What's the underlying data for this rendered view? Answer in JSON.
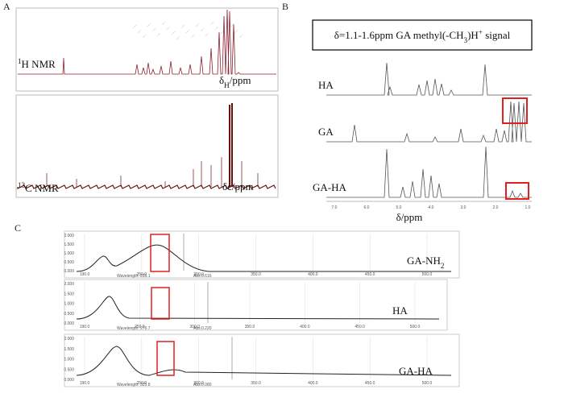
{
  "panel_a": {
    "label": "A",
    "h_nmr": {
      "sup": "1",
      "text": "H NMR"
    },
    "h_axis": {
      "main": "δ",
      "sub": "H",
      "rest": "/ppm"
    },
    "c_nmr": {
      "sup": "13",
      "text": "C NMR"
    },
    "c_axis": "δc/ppm"
  },
  "panel_b": {
    "label": "B",
    "note": {
      "pre": "δ=1.1-1.6ppm GA methyl(-CH",
      "sub": "3",
      "mid": ")H",
      "sup": "+",
      "post": " signal"
    },
    "traces": [
      "HA",
      "GA",
      "GA-HA"
    ],
    "x_ticks": [
      "7.0",
      "6.0",
      "5.0",
      "4.0",
      "3.0",
      "2.0",
      "1.0"
    ],
    "x_axis": "δ/ppm"
  },
  "panel_c": {
    "label": "C",
    "x_ticks": [
      "190.0",
      "250.0",
      "300.0",
      "350.0",
      "400.0",
      "450.0",
      "500.0"
    ],
    "y_ticks": [
      "2.000",
      "1.500",
      "1.000",
      "0.500",
      "0.000"
    ],
    "spectra": [
      {
        "name": {
          "text": "GA-NH",
          "sub": "2"
        },
        "wavelength": "Wavelength: 235.1",
        "abs": "Abs:0.616"
      },
      {
        "name": {
          "text": "HA",
          "sub": ""
        },
        "wavelength": "Wavelength: 276.7",
        "abs": "Abs:0.220"
      },
      {
        "name": {
          "text": "GA-HA",
          "sub": ""
        },
        "wavelength": "Wavelength: 325.8",
        "abs": "Abs:0.080"
      }
    ]
  }
}
